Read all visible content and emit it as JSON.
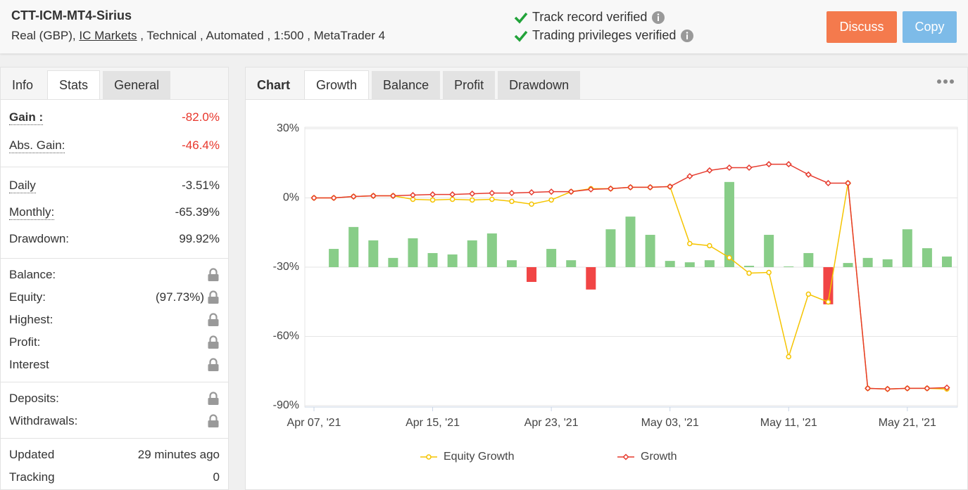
{
  "header": {
    "title": "CTT-ICM-MT4-Sirius",
    "account": "Real (GBP),",
    "broker": "IC Markets",
    "details": ", Technical , Automated , 1:500 , MetaTrader 4",
    "verifications": [
      "Track record verified",
      "Trading privileges verified"
    ],
    "buttons": [
      "Discuss",
      "Copy"
    ]
  },
  "sidebar": {
    "tabs": [
      "Info",
      "Stats",
      "General"
    ],
    "groups": [
      [
        {
          "label": "Gain :",
          "value": "-82.0%",
          "dotted": true,
          "negative": true
        },
        {
          "label": "Abs. Gain:",
          "value": "-46.4%",
          "dotted": true,
          "negative": true
        }
      ],
      [
        {
          "label": "Daily",
          "value": "-3.51%",
          "dotted": true
        },
        {
          "label": "Monthly:",
          "value": "-65.39%",
          "dotted": true
        },
        {
          "label": "Drawdown:",
          "value": "99.92%"
        }
      ],
      [
        {
          "label": "Balance:",
          "locked": true
        },
        {
          "label": "Equity:",
          "value": "(97.73%)",
          "locked": true
        },
        {
          "label": "Highest:",
          "locked": true
        },
        {
          "label": "Profit:",
          "locked": true
        },
        {
          "label": "Interest",
          "locked": true
        }
      ],
      [
        {
          "label": "Deposits:",
          "locked": true
        },
        {
          "label": "Withdrawals:",
          "locked": true
        }
      ],
      [
        {
          "label": "Updated",
          "value": "29 minutes ago"
        },
        {
          "label": "Tracking",
          "value": "0"
        }
      ]
    ]
  },
  "chart_tabs": [
    "Chart",
    "Growth",
    "Balance",
    "Profit",
    "Drawdown"
  ],
  "chart_data": {
    "type": "line",
    "categories": [
      "Apr 07, '21",
      null,
      null,
      null,
      null,
      null,
      "Apr 15, '21",
      null,
      null,
      null,
      null,
      null,
      "Apr 23, '21",
      null,
      null,
      null,
      null,
      null,
      "May 03, '21",
      null,
      null,
      null,
      null,
      null,
      "May 11, '21",
      null,
      null,
      null,
      null,
      null,
      "May 21, '21",
      null,
      null
    ],
    "ylim": [
      -90,
      30
    ],
    "yticks": [
      {
        "value": 30,
        "label": "30%"
      },
      {
        "value": 0,
        "label": "0%"
      },
      {
        "value": -30,
        "label": "-30%"
      },
      {
        "value": -60,
        "label": "-60%"
      },
      {
        "value": -90,
        "label": "-90%"
      }
    ],
    "y2lim": [
      -60,
      60
    ],
    "grid": true,
    "legend": "bottom",
    "series": [
      {
        "type": "bar",
        "axis": "y2",
        "color": "#88cd88",
        "negative_color": "#f14545",
        "values": [
          null,
          7.9,
          17.4,
          11.6,
          4.0,
          12.5,
          6.1,
          5.5,
          11.6,
          14.6,
          3.0,
          -6.4,
          7.9,
          3.0,
          -9.7,
          16.4,
          21.9,
          14.0,
          2.7,
          2.1,
          3.0,
          36.9,
          0.6,
          14.0,
          0.3,
          6.1,
          -16.1,
          1.8,
          4.0,
          3.4,
          16.4,
          8.2,
          4.6
        ]
      },
      {
        "type": "line",
        "name": "Equity Growth",
        "color": "#f5c400",
        "marker": "circle",
        "values": [
          0,
          0,
          0.6,
          0.9,
          0.9,
          -0.6,
          -0.9,
          -0.6,
          -0.9,
          -0.6,
          -1.5,
          -2.7,
          -0.9,
          2.7,
          4.0,
          4.0,
          4.6,
          4.6,
          4.9,
          -19.8,
          -20.7,
          -25.9,
          -32.6,
          -32.3,
          -68.8,
          -41.7,
          -45.1,
          6.4,
          -82.5,
          -82.8,
          -82.5,
          -82.5,
          -82.8
        ]
      },
      {
        "type": "line",
        "name": "Growth",
        "color": "#e63b2e",
        "marker": "diamond",
        "values": [
          0,
          0,
          0.6,
          0.9,
          0.9,
          1.2,
          1.5,
          1.5,
          1.8,
          2.1,
          2.1,
          2.4,
          2.7,
          2.7,
          3.7,
          4.0,
          4.6,
          4.6,
          4.9,
          9.4,
          11.9,
          13.1,
          13.1,
          14.6,
          14.6,
          10.1,
          6.4,
          6.4,
          -82.5,
          -82.8,
          -82.5,
          -82.5,
          -82.2
        ]
      }
    ]
  }
}
